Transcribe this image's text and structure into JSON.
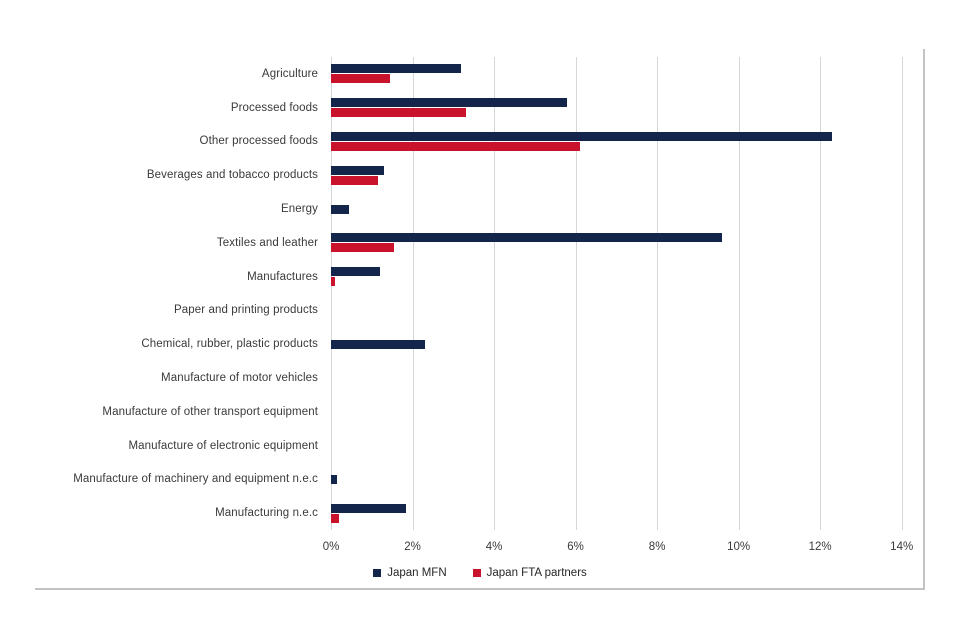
{
  "chart_data": {
    "type": "bar",
    "orientation": "horizontal",
    "title": "",
    "xlabel": "",
    "ylabel": "",
    "xlim": [
      0,
      14
    ],
    "x_ticks": [
      "0%",
      "2%",
      "4%",
      "6%",
      "8%",
      "10%",
      "12%",
      "14%"
    ],
    "grid": true,
    "legend_position": "bottom-center",
    "categories": [
      "Agriculture",
      "Processed foods",
      "Other processed foods",
      "Beverages and tobacco products",
      "Energy",
      "Textiles and leather",
      "Manufactures",
      "Paper and printing products",
      "Chemical, rubber, plastic products",
      "Manufacture of motor vehicles",
      "Manufacture of other transport equipment",
      "Manufacture of electronic equipment",
      "Manufacture of machinery and equipment n.e.c",
      "Manufacturing n.e.c"
    ],
    "series": [
      {
        "name": "Japan MFN",
        "color": "#13254B",
        "values": [
          3.2,
          5.8,
          12.3,
          1.3,
          0.45,
          9.6,
          1.2,
          0,
          2.3,
          0,
          0,
          0,
          0.15,
          1.85
        ]
      },
      {
        "name": "Japan FTA partners",
        "color": "#C9122B",
        "values": [
          1.45,
          3.3,
          6.1,
          1.15,
          0,
          1.55,
          0.1,
          0,
          0,
          0,
          0,
          0,
          0,
          0.2
        ]
      }
    ]
  },
  "legend": {
    "items": [
      {
        "label": "Japan MFN",
        "color": "#13254B"
      },
      {
        "label": "Japan FTA partners",
        "color": "#C9122B"
      }
    ]
  },
  "style": {
    "gridline_color": "#d6d6d6",
    "frame_color": "#c3c3c3",
    "text_color": "#3a3a3a",
    "background": "#ffffff"
  }
}
